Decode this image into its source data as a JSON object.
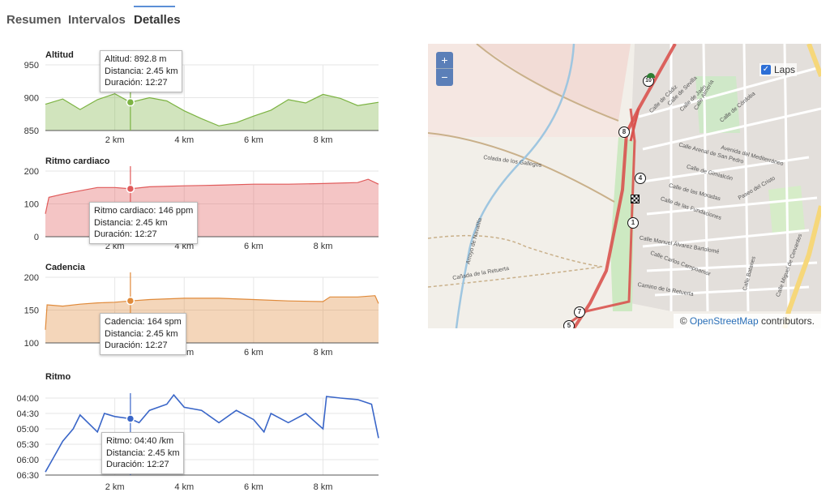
{
  "tabs": [
    {
      "label": "Resumen"
    },
    {
      "label": "Intervalos"
    },
    {
      "label": "Detalles"
    }
  ],
  "x_ticks": [
    "2 km",
    "4 km",
    "6 km",
    "8 km"
  ],
  "charts": {
    "altitud": {
      "title": "Altitud",
      "y_ticks": [
        "950",
        "900",
        "850"
      ],
      "tooltip": {
        "l1": "Altitud: 892.8 m",
        "l2": "Distancia: 2.45 km",
        "l3": "Duración: 12:27"
      },
      "color": "#7cb342"
    },
    "hr": {
      "title": "Ritmo cardiaco",
      "y_ticks": [
        "200",
        "100",
        "0"
      ],
      "tooltip": {
        "l1": "Ritmo cardiaco: 146 ppm",
        "l2": "Distancia: 2.45 km",
        "l3": "Duración: 12:27"
      },
      "color": "#e05a5a"
    },
    "cad": {
      "title": "Cadencia",
      "y_ticks": [
        "200",
        "150",
        "100"
      ],
      "tooltip": {
        "l1": "Cadencia: 164 spm",
        "l2": "Distancia: 2.45 km",
        "l3": "Duración: 12:27"
      },
      "color": "#e08a3a"
    },
    "pace": {
      "title": "Ritmo",
      "y_ticks": [
        "04:00",
        "04:30",
        "05:00",
        "05:30",
        "06:00",
        "06:30"
      ],
      "tooltip": {
        "l1": "Ritmo: 04:40 /km",
        "l2": "Distancia: 2.45 km",
        "l3": "Duración: 12:27"
      },
      "color": "#3a66c8"
    }
  },
  "map": {
    "zoom_in": "+",
    "zoom_out": "−",
    "laps_label": "Laps",
    "attribution_prefix": "©",
    "attribution_link": "OpenStreetMap",
    "attribution_suffix": "contributors.",
    "lap_markers": [
      "10",
      "8",
      "4",
      "1",
      "7",
      "5"
    ],
    "street_labels": [
      "Calle de Cádiz",
      "Calle de Sevilla",
      "Calle de Jaén",
      "Calle Almería",
      "Calle de Córdoba",
      "Avenida del Mediterráneo",
      "Calle Arenal de San Pedro",
      "Calle de Gimialcón",
      "Calle de las Moradas",
      "Calle de las Fundaciones",
      "Calle Manuel Álvarez Bartolomé",
      "Calle Carlos Campoamor",
      "Camino de la Retuerta",
      "Colada de los Gallegos",
      "Arroyo de Navalilla",
      "Cañada de la Retuerta",
      "Paseo del Cristo",
      "Calle Batanes",
      "Calle Miguel de Cervantes"
    ]
  },
  "chart_data": [
    {
      "type": "area",
      "title": "Altitud",
      "xlabel": "",
      "ylabel": "",
      "x_unit": "km",
      "xlim": [
        0,
        9.6
      ],
      "ylim": [
        850,
        950
      ],
      "x": [
        0,
        0.5,
        1.0,
        1.5,
        2.0,
        2.45,
        3.0,
        3.5,
        4.0,
        4.5,
        5.0,
        5.5,
        6.0,
        6.5,
        7.0,
        7.5,
        8.0,
        8.5,
        9.0,
        9.6
      ],
      "y": [
        890,
        898,
        882,
        897,
        906,
        893,
        900,
        895,
        880,
        868,
        857,
        862,
        872,
        881,
        897,
        892,
        905,
        899,
        888,
        893
      ]
    },
    {
      "type": "area",
      "title": "Ritmo cardiaco",
      "xlabel": "",
      "ylabel": "",
      "x_unit": "km",
      "xlim": [
        0,
        9.6
      ],
      "ylim": [
        0,
        200
      ],
      "x": [
        0,
        0.1,
        0.5,
        1.0,
        1.5,
        2.0,
        2.45,
        3.0,
        4.0,
        5.0,
        6.0,
        7.0,
        8.0,
        9.0,
        9.3,
        9.6
      ],
      "y": [
        70,
        120,
        130,
        140,
        150,
        150,
        146,
        152,
        155,
        157,
        160,
        160,
        162,
        165,
        175,
        160
      ]
    },
    {
      "type": "area",
      "title": "Cadencia",
      "xlabel": "",
      "ylabel": "",
      "x_unit": "km",
      "xlim": [
        0,
        9.6
      ],
      "ylim": [
        100,
        200
      ],
      "x": [
        0,
        0.05,
        0.5,
        1.0,
        1.5,
        2.0,
        2.45,
        3.0,
        4.0,
        5.0,
        6.0,
        7.0,
        8.0,
        8.2,
        9.0,
        9.5,
        9.6
      ],
      "y": [
        120,
        158,
        156,
        159,
        161,
        162,
        164,
        166,
        168,
        168,
        166,
        164,
        163,
        170,
        170,
        172,
        160
      ]
    },
    {
      "type": "line",
      "title": "Ritmo",
      "xlabel": "",
      "ylabel": "",
      "x_unit": "km",
      "xlim": [
        0,
        9.6
      ],
      "ylim_min_per_km": [
        3.75,
        6.5
      ],
      "x": [
        0,
        0.2,
        0.5,
        0.8,
        1.0,
        1.5,
        1.7,
        2.0,
        2.45,
        2.7,
        3.0,
        3.5,
        3.7,
        4.0,
        4.5,
        5.0,
        5.5,
        6.0,
        6.3,
        6.5,
        7.0,
        7.5,
        8.0,
        8.1,
        8.5,
        9.0,
        9.4,
        9.6
      ],
      "y": [
        6.4,
        6.0,
        5.4,
        5.0,
        4.55,
        5.1,
        4.5,
        4.6,
        4.67,
        4.8,
        4.4,
        4.2,
        3.9,
        4.3,
        4.4,
        4.8,
        4.4,
        4.7,
        5.1,
        4.5,
        4.8,
        4.5,
        5.0,
        3.95,
        4.0,
        4.05,
        4.2,
        5.3
      ]
    }
  ]
}
